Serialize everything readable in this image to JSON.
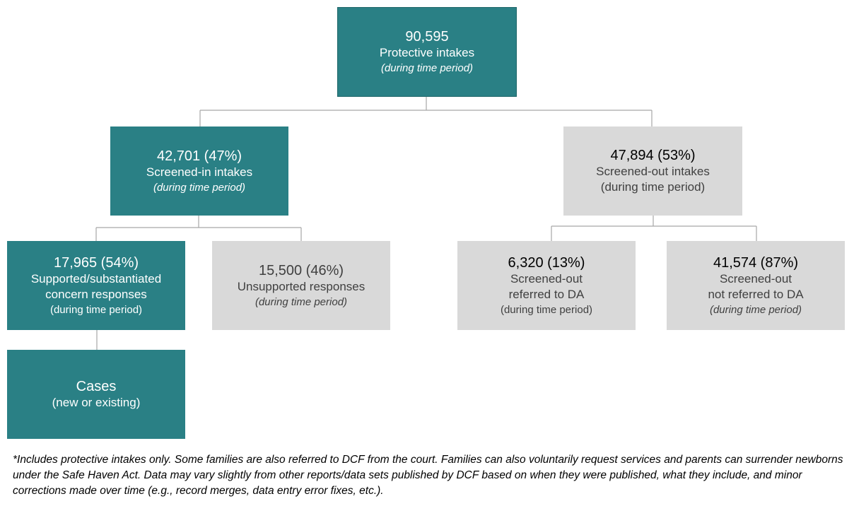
{
  "nodes": {
    "root": {
      "count": "90,595",
      "label": "Protective intakes",
      "note": "(during time period)"
    },
    "screened_in": {
      "count": "42,701 (47%)",
      "label": "Screened-in intakes",
      "note": "(during time period)"
    },
    "screened_out": {
      "count": "47,894 (53%)",
      "label": "Screened-out intakes",
      "note": "(during time period)"
    },
    "supported": {
      "count": "17,965 (54%)",
      "label_line1": "Supported/substantiated",
      "label_line2": "concern responses",
      "note": "(during time period)"
    },
    "unsupported": {
      "count": "15,500 (46%)",
      "label": "Unsupported responses",
      "note": "(during time period)"
    },
    "referred_da": {
      "count": "6,320 (13%)",
      "label_line1": "Screened-out",
      "label_line2": "referred to DA",
      "note": "(during time period)"
    },
    "not_referred_da": {
      "count": "41,574 (87%)",
      "label_line1": "Screened-out",
      "label_line2": "not referred to DA",
      "note": "(during time period)"
    },
    "cases": {
      "label": "Cases",
      "note": "(new or existing)"
    }
  },
  "colors": {
    "teal": "#2a8085",
    "gray": "#d9d9d9",
    "connector": "#a6a6a6"
  },
  "footnote": "*Includes protective intakes only.  Some families are also referred to DCF from the court.  Families can also voluntarily request services and parents can surrender newborns under the Safe Haven Act. Data may vary slightly from other reports/data sets published by DCF based on when they were published, what they include, and minor corrections made over time (e.g., record merges, data entry error fixes, etc.)."
}
